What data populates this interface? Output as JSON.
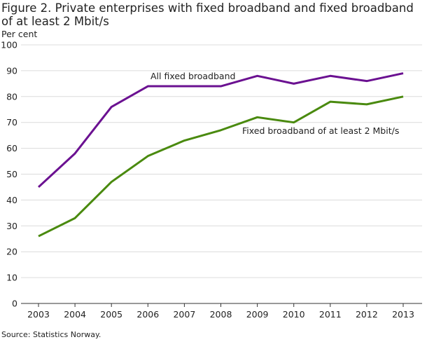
{
  "chart_data": {
    "type": "line",
    "title": "Figure 2. Private enterprises with fixed broadband and fixed broadband of at least 2 Mbit/s",
    "ylabel": "Per cent",
    "xlabel": "",
    "source": "Source: Statistics Norway.",
    "x": [
      "2003",
      "2004",
      "2005",
      "2006",
      "2007",
      "2008",
      "2009",
      "2010",
      "2011",
      "2012",
      "2013"
    ],
    "ylim": [
      0,
      100
    ],
    "yticks": [
      0,
      10,
      20,
      30,
      40,
      50,
      60,
      70,
      80,
      90,
      100
    ],
    "grid": true,
    "series": [
      {
        "name": "All fixed broadband",
        "color": "#6b1191",
        "values": [
          45,
          58,
          76,
          84,
          84,
          84,
          88,
          85,
          88,
          86,
          89
        ]
      },
      {
        "name": "Fixed broadband of at least 2 Mbit/s",
        "color": "#4a8a0f",
        "values": [
          26,
          33,
          47,
          57,
          63,
          67,
          72,
          70,
          78,
          77,
          80
        ]
      }
    ]
  }
}
